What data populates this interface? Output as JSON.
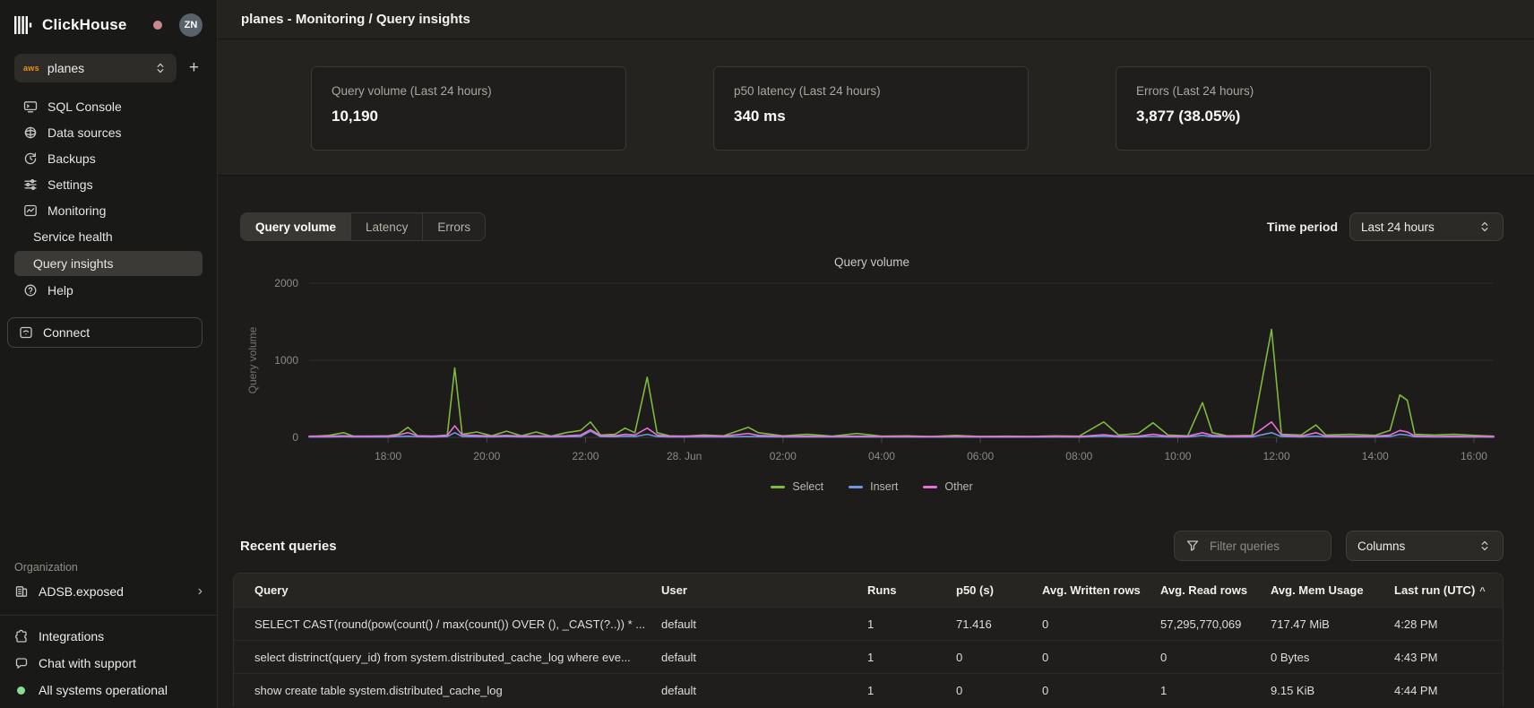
{
  "sidebar": {
    "brand": "ClickHouse",
    "avatar_initials": "ZN",
    "service_selector": {
      "provider": "aws",
      "value": "planes"
    },
    "nav": {
      "sql_console": "SQL Console",
      "data_sources": "Data sources",
      "backups": "Backups",
      "settings": "Settings",
      "monitoring": "Monitoring",
      "service_health": "Service health",
      "query_insights": "Query insights",
      "help": "Help"
    },
    "connect_label": "Connect",
    "organization_label": "Organization",
    "organization_name": "ADSB.exposed",
    "footer": {
      "integrations": "Integrations",
      "chat": "Chat with support",
      "status": "All systems operational"
    }
  },
  "header": {
    "title": "planes - Monitoring / Query insights"
  },
  "stats": [
    {
      "label": "Query volume (Last 24 hours)",
      "value": "10,190"
    },
    {
      "label": "p50 latency (Last 24 hours)",
      "value": "340 ms"
    },
    {
      "label": "Errors (Last 24 hours)",
      "value": "3,877 (38.05%)"
    }
  ],
  "tabs": {
    "items": [
      "Query volume",
      "Latency",
      "Errors"
    ],
    "active": "Query volume"
  },
  "time_period": {
    "label": "Time period",
    "value": "Last 24 hours"
  },
  "chart_data": {
    "type": "line",
    "title": "Query volume",
    "ylabel": "Query volume",
    "ylim": [
      0,
      2000
    ],
    "yticks": [
      0,
      1000,
      2000
    ],
    "grid": "horizontal",
    "legend_position": "bottom",
    "x_domain_hours": [
      16.4,
      40.4
    ],
    "xticks": [
      {
        "t": 18,
        "label": "18:00"
      },
      {
        "t": 20,
        "label": "20:00"
      },
      {
        "t": 22,
        "label": "22:00"
      },
      {
        "t": 24,
        "label": "28. Jun"
      },
      {
        "t": 26,
        "label": "02:00"
      },
      {
        "t": 28,
        "label": "04:00"
      },
      {
        "t": 30,
        "label": "06:00"
      },
      {
        "t": 32,
        "label": "08:00"
      },
      {
        "t": 34,
        "label": "10:00"
      },
      {
        "t": 36,
        "label": "12:00"
      },
      {
        "t": 38,
        "label": "14:00"
      },
      {
        "t": 40,
        "label": "16:00"
      }
    ],
    "t": [
      16.4,
      16.8,
      17.1,
      17.3,
      17.6,
      18.0,
      18.2,
      18.4,
      18.6,
      18.9,
      19.2,
      19.35,
      19.5,
      19.8,
      20.1,
      20.4,
      20.7,
      21.0,
      21.3,
      21.6,
      21.9,
      22.1,
      22.3,
      22.6,
      22.8,
      23.0,
      23.25,
      23.45,
      23.7,
      24.0,
      24.4,
      24.8,
      25.3,
      25.5,
      26.0,
      26.5,
      27.0,
      27.5,
      28.0,
      28.5,
      29.0,
      29.5,
      30.0,
      30.5,
      31.0,
      31.5,
      32.0,
      32.5,
      32.8,
      33.2,
      33.5,
      33.8,
      34.2,
      34.5,
      34.7,
      35.0,
      35.5,
      35.9,
      36.1,
      36.5,
      36.8,
      37.0,
      37.5,
      38.0,
      38.3,
      38.5,
      38.65,
      38.8,
      39.2,
      39.6,
      40.0,
      40.4
    ],
    "series": [
      {
        "name": "Select",
        "color": "#7db93e",
        "values": [
          10,
          25,
          60,
          15,
          15,
          20,
          40,
          130,
          20,
          15,
          30,
          900,
          40,
          70,
          20,
          80,
          20,
          70,
          15,
          60,
          90,
          200,
          30,
          40,
          120,
          60,
          780,
          60,
          20,
          15,
          30,
          20,
          130,
          60,
          20,
          40,
          15,
          50,
          15,
          20,
          12,
          25,
          12,
          15,
          12,
          20,
          15,
          200,
          30,
          50,
          190,
          30,
          20,
          450,
          60,
          20,
          25,
          1400,
          40,
          30,
          160,
          30,
          40,
          25,
          90,
          550,
          480,
          40,
          30,
          40,
          25,
          15
        ]
      },
      {
        "name": "Insert",
        "color": "#6f96e0",
        "values": [
          5,
          5,
          8,
          5,
          5,
          5,
          10,
          15,
          8,
          5,
          10,
          60,
          10,
          8,
          5,
          10,
          5,
          8,
          5,
          8,
          10,
          80,
          10,
          8,
          15,
          10,
          40,
          10,
          5,
          5,
          8,
          5,
          10,
          8,
          5,
          5,
          5,
          5,
          5,
          5,
          4,
          5,
          4,
          4,
          4,
          5,
          4,
          15,
          5,
          5,
          12,
          5,
          5,
          25,
          8,
          5,
          5,
          60,
          10,
          5,
          15,
          5,
          5,
          5,
          10,
          40,
          30,
          8,
          5,
          5,
          5,
          4
        ]
      },
      {
        "name": "Other",
        "color": "#e571d5",
        "values": [
          15,
          15,
          20,
          15,
          15,
          18,
          30,
          60,
          20,
          15,
          25,
          150,
          30,
          25,
          15,
          25,
          15,
          20,
          15,
          20,
          30,
          100,
          25,
          20,
          40,
          30,
          120,
          30,
          15,
          15,
          20,
          15,
          50,
          25,
          15,
          15,
          12,
          15,
          12,
          12,
          10,
          12,
          10,
          10,
          10,
          12,
          10,
          35,
          15,
          15,
          40,
          15,
          15,
          60,
          25,
          15,
          15,
          200,
          30,
          15,
          60,
          15,
          15,
          15,
          30,
          90,
          70,
          20,
          12,
          15,
          12,
          10
        ]
      }
    ]
  },
  "recent": {
    "title": "Recent queries",
    "filter_placeholder": "Filter queries",
    "columns_label": "Columns",
    "table": {
      "headers": [
        "Query",
        "User",
        "Runs",
        "p50 (s)",
        "Avg. Written rows",
        "Avg. Read rows",
        "Avg. Mem Usage",
        "Last run (UTC)"
      ],
      "sorted_by": "Last run (UTC)",
      "sort_direction": "asc",
      "rows": [
        {
          "query": "SELECT CAST(round(pow(count() / max(count()) OVER (), _CAST(?..)) * ...",
          "user": "default",
          "runs": "1",
          "p50": "71.416",
          "avg_written": "0",
          "avg_read": "57,295,770,069",
          "avg_mem": "717.47 MiB",
          "last_run": "4:28 PM"
        },
        {
          "query": "select distrinct(query_id) from system.distributed_cache_log where eve...",
          "user": "default",
          "runs": "1",
          "p50": "0",
          "avg_written": "0",
          "avg_read": "0",
          "avg_mem": "0 Bytes",
          "last_run": "4:43 PM"
        },
        {
          "query": "show create table system.distributed_cache_log",
          "user": "default",
          "runs": "1",
          "p50": "0",
          "avg_written": "0",
          "avg_read": "1",
          "avg_mem": "9.15 KiB",
          "last_run": "4:44 PM"
        }
      ]
    }
  }
}
